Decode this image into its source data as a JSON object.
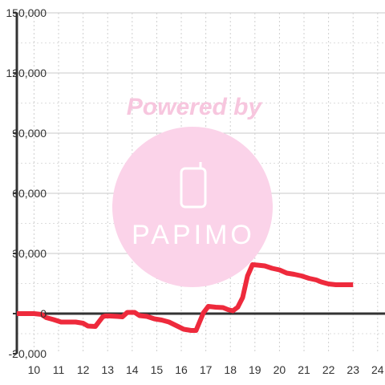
{
  "chart_data": {
    "type": "line",
    "title": "",
    "xlabel": "",
    "ylabel": "",
    "xlim": [
      9.3,
      24.3
    ],
    "ylim": [
      -20000,
      150000
    ],
    "x_ticks": [
      10,
      11,
      12,
      13,
      14,
      15,
      16,
      17,
      18,
      19,
      20,
      21,
      22,
      23,
      24
    ],
    "y_ticks": [
      -20000,
      0,
      30000,
      60000,
      90000,
      120000,
      150000
    ],
    "y_tick_labels": [
      "-20,000",
      "0",
      "30,000",
      "60,000",
      "90,000",
      "120,000",
      "150,000"
    ],
    "grid": true,
    "series": [
      {
        "color": "#ee2a3c",
        "x": [
          9.3,
          10.0,
          10.3,
          10.5,
          10.8,
          11.1,
          11.4,
          11.7,
          12.0,
          12.2,
          12.5,
          12.8,
          12.9,
          13.1,
          13.4,
          13.6,
          13.8,
          14.1,
          14.3,
          14.6,
          14.9,
          15.2,
          15.5,
          15.8,
          16.1,
          16.4,
          16.6,
          16.9,
          17.1,
          17.4,
          17.7,
          17.9,
          18.1,
          18.3,
          18.5,
          18.7,
          18.9,
          19.1,
          19.4,
          19.7,
          20.0,
          20.3,
          20.6,
          20.9,
          21.2,
          21.5,
          21.7,
          22.0,
          22.3,
          22.6,
          23.0
        ],
        "y": [
          0,
          0,
          -400,
          -2000,
          -3000,
          -4200,
          -4200,
          -4200,
          -4800,
          -6200,
          -6400,
          -1600,
          -1200,
          -1200,
          -1400,
          -1600,
          600,
          600,
          -1000,
          -1400,
          -2600,
          -3200,
          -4200,
          -6000,
          -7800,
          -8400,
          -8400,
          400,
          3600,
          3200,
          3000,
          2000,
          1400,
          3200,
          8000,
          18800,
          24400,
          24200,
          23800,
          22600,
          21800,
          20200,
          19600,
          18800,
          17600,
          16800,
          15800,
          14800,
          14400,
          14400,
          14400
        ]
      }
    ]
  },
  "watermark": {
    "powered_text": "Powered by",
    "logo_text": "PAPIMO",
    "color": "#f8bbd9"
  }
}
